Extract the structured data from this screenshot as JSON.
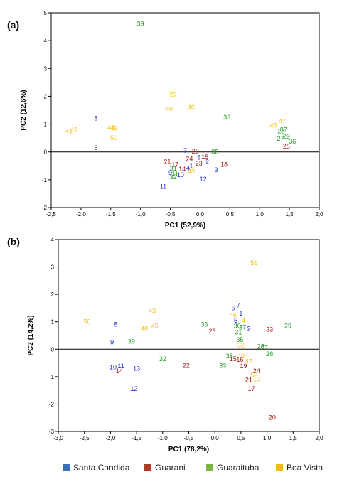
{
  "legend": [
    {
      "label": "Santa Candida",
      "color": "#3B6FB6"
    },
    {
      "label": "Guarani",
      "color": "#B23B2E"
    },
    {
      "label": "Guaraituba",
      "color": "#7DB63A"
    },
    {
      "label": "Boa Vista",
      "color": "#F2B81F"
    }
  ],
  "colors": {
    "Santa Candida": "#1F2FD0",
    "Guarani": "#A01818",
    "Guaraituba": "#1F9A1F",
    "Boa Vista": "#F2C21A"
  },
  "chart_data": [
    {
      "type": "scatter",
      "panel": "(a)",
      "xlabel": "PC1 (52,9%)",
      "ylabel": "PC2 (12,6%)",
      "xlim": [
        -2.5,
        2.0
      ],
      "ylim": [
        -2,
        5
      ],
      "xticks": [
        "-2,5",
        "-2,0",
        "-1,5",
        "-1,0",
        "-0,5",
        "0,0",
        "0,5",
        "1,0",
        "1,5",
        "2,0"
      ],
      "yticks": [
        "-2",
        "-1",
        "0",
        "1",
        "2",
        "3",
        "4",
        "5"
      ],
      "grid": false,
      "points": [
        {
          "label": "39",
          "group": "Guaraituba",
          "x": -1.0,
          "y": 4.6
        },
        {
          "label": "52",
          "group": "Boa Vista",
          "x": -0.45,
          "y": 2.05
        },
        {
          "label": "40",
          "group": "Boa Vista",
          "x": -0.52,
          "y": 1.55
        },
        {
          "label": "46",
          "group": "Boa Vista",
          "x": -0.15,
          "y": 1.6
        },
        {
          "label": "33",
          "group": "Guaraituba",
          "x": 0.45,
          "y": 1.25
        },
        {
          "label": "8",
          "group": "Santa Candida",
          "x": -1.75,
          "y": 1.2
        },
        {
          "label": "44",
          "group": "Boa Vista",
          "x": -1.5,
          "y": 0.88
        },
        {
          "label": "49",
          "group": "Boa Vista",
          "x": -1.45,
          "y": 0.85
        },
        {
          "label": "50",
          "group": "Boa Vista",
          "x": -1.45,
          "y": 0.5
        },
        {
          "label": "41",
          "group": "Boa Vista",
          "x": -2.2,
          "y": 0.75
        },
        {
          "label": "42",
          "group": "Boa Vista",
          "x": -2.12,
          "y": 0.8
        },
        {
          "label": "5",
          "group": "Santa Candida",
          "x": -1.75,
          "y": 0.15
        },
        {
          "label": "47",
          "group": "Boa Vista",
          "x": 1.38,
          "y": 1.1
        },
        {
          "label": "45",
          "group": "Boa Vista",
          "x": 1.23,
          "y": 0.95
        },
        {
          "label": "37",
          "group": "Guaraituba",
          "x": 1.4,
          "y": 0.8
        },
        {
          "label": "28",
          "group": "Guaraituba",
          "x": 1.36,
          "y": 0.75
        },
        {
          "label": "29",
          "group": "Guaraituba",
          "x": 1.45,
          "y": 0.55
        },
        {
          "label": "27",
          "group": "Guaraituba",
          "x": 1.35,
          "y": 0.48
        },
        {
          "label": "36",
          "group": "Guaraituba",
          "x": 1.55,
          "y": 0.38
        },
        {
          "label": "25",
          "group": "Guarani",
          "x": 1.45,
          "y": 0.2
        },
        {
          "label": "7",
          "group": "Santa Candida",
          "x": -0.25,
          "y": 0.05
        },
        {
          "label": "20",
          "group": "Guarani",
          "x": -0.08,
          "y": 0.02
        },
        {
          "label": "38",
          "group": "Guaraituba",
          "x": 0.25,
          "y": 0.0
        },
        {
          "label": "6",
          "group": "Santa Candida",
          "x": -0.02,
          "y": -0.2
        },
        {
          "label": "15",
          "group": "Guarani",
          "x": 0.08,
          "y": -0.18
        },
        {
          "label": "24",
          "group": "Guarani",
          "x": -0.18,
          "y": -0.25
        },
        {
          "label": "2",
          "group": "Santa Candida",
          "x": 0.12,
          "y": -0.35
        },
        {
          "label": "23",
          "group": "Guarani",
          "x": -0.02,
          "y": -0.42
        },
        {
          "label": "21",
          "group": "Guarani",
          "x": -0.55,
          "y": -0.35
        },
        {
          "label": "17",
          "group": "Guarani",
          "x": -0.42,
          "y": -0.45
        },
        {
          "label": "18",
          "group": "Guarani",
          "x": 0.4,
          "y": -0.45
        },
        {
          "label": "1",
          "group": "Santa Candida",
          "x": -0.15,
          "y": -0.5
        },
        {
          "label": "4",
          "group": "Santa Candida",
          "x": -0.2,
          "y": -0.58
        },
        {
          "label": "14",
          "group": "Guarani",
          "x": -0.3,
          "y": -0.62
        },
        {
          "label": "31",
          "group": "Guaraituba",
          "x": -0.45,
          "y": -0.6
        },
        {
          "label": "3",
          "group": "Santa Candida",
          "x": 0.27,
          "y": -0.65
        },
        {
          "label": "9",
          "group": "Santa Candida",
          "x": -0.5,
          "y": -0.75
        },
        {
          "label": "11",
          "group": "Guaraituba",
          "x": -0.42,
          "y": -0.8
        },
        {
          "label": "10",
          "group": "Santa Candida",
          "x": -0.33,
          "y": -0.82
        },
        {
          "label": "43",
          "group": "Boa Vista",
          "x": -0.15,
          "y": -0.7
        },
        {
          "label": "32",
          "group": "Guaraituba",
          "x": -0.45,
          "y": -0.9
        },
        {
          "label": "12",
          "group": "Santa Candida",
          "x": 0.05,
          "y": -0.98
        },
        {
          "label": "11",
          "group": "Santa Candida",
          "x": -0.62,
          "y": -1.25
        }
      ]
    },
    {
      "type": "scatter",
      "panel": "(b)",
      "xlabel": "PC1 (78,2%)",
      "ylabel": "PC2 (14,2%)",
      "xlim": [
        -3.0,
        2.0
      ],
      "ylim": [
        -3,
        4
      ],
      "xticks": [
        "-3,0",
        "-2,5",
        "-2,0",
        "-1,5",
        "-1,0",
        "-0,5",
        "0,0",
        "0,5",
        "1,0",
        "1,5",
        "2,0"
      ],
      "yticks": [
        "-3",
        "-2",
        "-1",
        "0",
        "1",
        "2",
        "3",
        "4"
      ],
      "grid": false,
      "points": [
        {
          "label": "51",
          "group": "Boa Vista",
          "x": 0.75,
          "y": 3.15
        },
        {
          "label": "7",
          "group": "Santa Candida",
          "x": 0.45,
          "y": 1.6
        },
        {
          "label": "6",
          "group": "Santa Candida",
          "x": 0.35,
          "y": 1.5
        },
        {
          "label": "1",
          "group": "Santa Candida",
          "x": 0.5,
          "y": 1.3
        },
        {
          "label": "46",
          "group": "Boa Vista",
          "x": 0.35,
          "y": 1.25
        },
        {
          "label": "5",
          "group": "Santa Candida",
          "x": 0.4,
          "y": 1.05
        },
        {
          "label": "4",
          "group": "Boa Vista",
          "x": 0.55,
          "y": 1.05
        },
        {
          "label": "30",
          "group": "Guaraituba",
          "x": 0.43,
          "y": 0.85
        },
        {
          "label": "37",
          "group": "Guaraituba",
          "x": 0.53,
          "y": 0.8
        },
        {
          "label": "2",
          "group": "Santa Candida",
          "x": 0.65,
          "y": 0.75
        },
        {
          "label": "31",
          "group": "Guaraituba",
          "x": 0.45,
          "y": 0.62
        },
        {
          "label": "35",
          "group": "Guaraituba",
          "x": 0.48,
          "y": 0.35
        },
        {
          "label": "32",
          "group": "Boa Vista",
          "x": 0.5,
          "y": 0.15
        },
        {
          "label": "23",
          "group": "Guarani",
          "x": 1.05,
          "y": 0.72
        },
        {
          "label": "29",
          "group": "Guaraituba",
          "x": 1.4,
          "y": 0.85
        },
        {
          "label": "28",
          "group": "Guaraituba",
          "x": 0.88,
          "y": 0.1
        },
        {
          "label": "27",
          "group": "Guaraituba",
          "x": 0.95,
          "y": 0.05
        },
        {
          "label": "26",
          "group": "Guaraituba",
          "x": 1.05,
          "y": -0.18
        },
        {
          "label": "36",
          "group": "Guaraituba",
          "x": -0.2,
          "y": 0.9
        },
        {
          "label": "25",
          "group": "Guarani",
          "x": -0.05,
          "y": 0.65
        },
        {
          "label": "38",
          "group": "Guaraituba",
          "x": 0.28,
          "y": -0.25
        },
        {
          "label": "40",
          "group": "Boa Vista",
          "x": 0.5,
          "y": -0.25
        },
        {
          "label": "15",
          "group": "Guarani",
          "x": 0.35,
          "y": -0.35
        },
        {
          "label": "16",
          "group": "Guarani",
          "x": 0.48,
          "y": -0.38
        },
        {
          "label": "47",
          "group": "Boa Vista",
          "x": 0.65,
          "y": -0.45
        },
        {
          "label": "33",
          "group": "Guaraituba",
          "x": 0.15,
          "y": -0.6
        },
        {
          "label": "19",
          "group": "Guarani",
          "x": 0.55,
          "y": -0.62
        },
        {
          "label": "24",
          "group": "Guarani",
          "x": 0.8,
          "y": -0.8
        },
        {
          "label": "52",
          "group": "Boa Vista",
          "x": 0.75,
          "y": -0.95
        },
        {
          "label": "21",
          "group": "Guarani",
          "x": 0.65,
          "y": -1.12
        },
        {
          "label": "10",
          "group": "Boa Vista",
          "x": 0.8,
          "y": -1.1
        },
        {
          "label": "17",
          "group": "Guarani",
          "x": 0.7,
          "y": -1.45
        },
        {
          "label": "20",
          "group": "Guarani",
          "x": 1.1,
          "y": -2.5
        },
        {
          "label": "50",
          "group": "Boa Vista",
          "x": -2.45,
          "y": 1.0
        },
        {
          "label": "8",
          "group": "Santa Candida",
          "x": -1.9,
          "y": 0.9
        },
        {
          "label": "48",
          "group": "Boa Vista",
          "x": -1.35,
          "y": 0.75
        },
        {
          "label": "43",
          "group": "Boa Vista",
          "x": -1.2,
          "y": 1.4
        },
        {
          "label": "45",
          "group": "Boa Vista",
          "x": -1.15,
          "y": 0.85
        },
        {
          "label": "39",
          "group": "Guaraituba",
          "x": -1.6,
          "y": 0.28
        },
        {
          "label": "9",
          "group": "Santa Candida",
          "x": -1.97,
          "y": 0.25
        },
        {
          "label": "32",
          "group": "Guaraituba",
          "x": -1.0,
          "y": -0.35
        },
        {
          "label": "22",
          "group": "Guarani",
          "x": -0.55,
          "y": -0.6
        },
        {
          "label": "10",
          "group": "Santa Candida",
          "x": -1.95,
          "y": -0.65
        },
        {
          "label": "11",
          "group": "Santa Candida",
          "x": -1.8,
          "y": -0.62
        },
        {
          "label": "14",
          "group": "Guarani",
          "x": -1.83,
          "y": -0.8
        },
        {
          "label": "13",
          "group": "Santa Candida",
          "x": -1.5,
          "y": -0.7
        },
        {
          "label": "12",
          "group": "Santa Candida",
          "x": -1.55,
          "y": -1.45
        }
      ]
    }
  ]
}
